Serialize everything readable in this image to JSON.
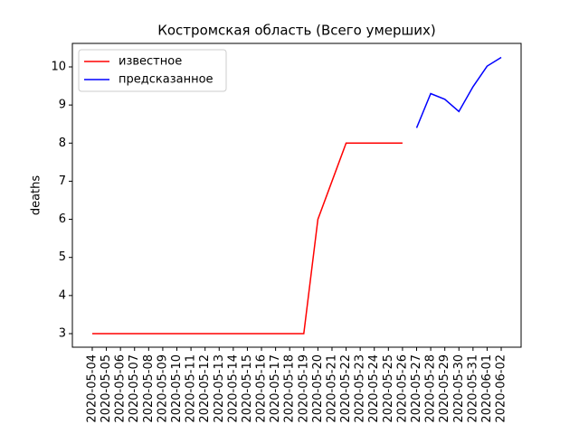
{
  "chart_data": {
    "type": "line",
    "title": "Костромская область (Всего умерших)",
    "ylabel": "deaths",
    "x": [
      "2020-05-04",
      "2020-05-05",
      "2020-05-06",
      "2020-05-07",
      "2020-05-08",
      "2020-05-09",
      "2020-05-10",
      "2020-05-11",
      "2020-05-12",
      "2020-05-13",
      "2020-05-14",
      "2020-05-15",
      "2020-05-16",
      "2020-05-17",
      "2020-05-18",
      "2020-05-19",
      "2020-05-20",
      "2020-05-21",
      "2020-05-22",
      "2020-05-23",
      "2020-05-24",
      "2020-05-25",
      "2020-05-26",
      "2020-05-27",
      "2020-05-28",
      "2020-05-29",
      "2020-05-30",
      "2020-05-31",
      "2020-06-01",
      "2020-06-02"
    ],
    "series": [
      {
        "name": "известное",
        "color": "#ff0000",
        "values": [
          3,
          3,
          3,
          3,
          3,
          3,
          3,
          3,
          3,
          3,
          3,
          3,
          3,
          3,
          3,
          3,
          6,
          7,
          8,
          8,
          8,
          8,
          8,
          null,
          null,
          null,
          null,
          null,
          null,
          null
        ]
      },
      {
        "name": "предсказанное",
        "color": "#0000ff",
        "values": [
          null,
          null,
          null,
          null,
          null,
          null,
          null,
          null,
          null,
          null,
          null,
          null,
          null,
          null,
          null,
          null,
          null,
          null,
          null,
          null,
          null,
          null,
          null,
          8.4,
          9.3,
          9.15,
          8.83,
          9.48,
          10.02,
          10.25
        ]
      }
    ],
    "ylim": [
      2.644,
      10.617
    ],
    "yticks": [
      3,
      4,
      5,
      6,
      7,
      8,
      9,
      10
    ],
    "legend": "upper left"
  }
}
